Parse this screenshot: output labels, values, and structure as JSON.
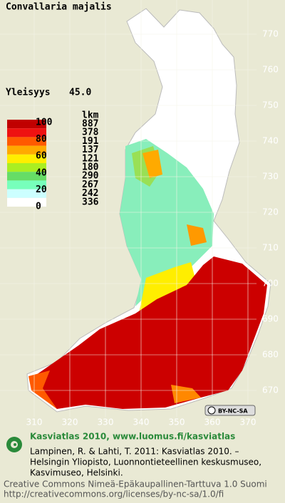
{
  "title": "Convallaria majalis",
  "frequency": {
    "label": "Yleisyys",
    "value": "45.0"
  },
  "legend": {
    "count_header": "lkm",
    "scale_labels": [
      100,
      80,
      60,
      40,
      20,
      0
    ],
    "classes": [
      {
        "color": "#c00000",
        "count": 887
      },
      {
        "color": "#ee1111",
        "count": 378
      },
      {
        "color": "#ff5a00",
        "count": 191
      },
      {
        "color": "#ffaa00",
        "count": 137
      },
      {
        "color": "#ffee00",
        "count": 121
      },
      {
        "color": "#aaee22",
        "count": 180
      },
      {
        "color": "#66dd66",
        "count": 290
      },
      {
        "color": "#77ffbb",
        "count": 267
      },
      {
        "color": "#ccffff",
        "count": 242
      },
      {
        "color": "#ffffff",
        "count": 336
      }
    ]
  },
  "grid": {
    "north": [
      770,
      760,
      750,
      740,
      730,
      720,
      710,
      700,
      690,
      680,
      670
    ],
    "east": [
      310,
      320,
      330,
      340,
      350,
      360,
      370
    ]
  },
  "license_badge": "BY-NC-SA",
  "footer": {
    "heading": "Kasviatlas 2010, www.luomus.fi/kasviatlas",
    "citation": [
      "Lampinen, R. & Lahti, T. 2011: Kasviatlas 2010. –",
      "Helsingin Yliopisto, Luonnontieteellinen keskusmuseo,",
      "Kasvimuseo, Helsinki."
    ],
    "license": [
      "Creative Commons Nimeä-Epäkaupallinen-Tarttuva 1.0 Suomi",
      "http://creativecommons.org/licenses/by-nc-sa/1.0/fi"
    ]
  }
}
